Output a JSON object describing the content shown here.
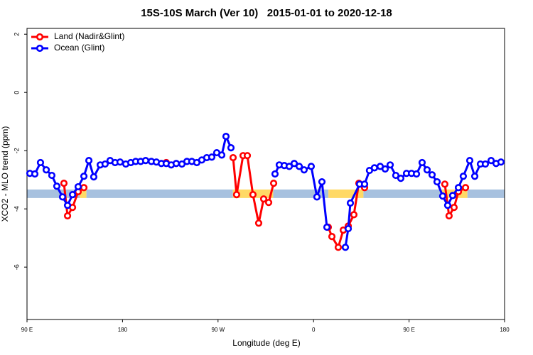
{
  "chart_data": {
    "type": "line",
    "title": "15S-10S March (Ver 10)   2015-01-01 to 2020-12-18",
    "x_label": "Longitude (deg E)",
    "y_label": "XCO2 - MLO trend (ppm)",
    "xlim": [
      90,
      540
    ],
    "xticks": [
      {
        "value": 90,
        "label": "90 E"
      },
      {
        "value": 180,
        "label": "180"
      },
      {
        "value": 270,
        "label": "90 W"
      },
      {
        "value": 360,
        "label": "0"
      },
      {
        "value": 450,
        "label": "90 E"
      },
      {
        "value": 540,
        "label": "180"
      }
    ],
    "ylim": [
      -7.8,
      2.2
    ],
    "yticks": [
      2,
      0,
      -2,
      -4,
      -6
    ],
    "legend": "top-left",
    "band_y": -3.48,
    "bands": [
      {
        "x": [
          90,
          139.6
        ],
        "color": "#a7c1df"
      },
      {
        "x": [
          139.6,
          146
        ],
        "color": "#ffd966"
      },
      {
        "x": [
          146,
          284
        ],
        "color": "#a7c1df"
      },
      {
        "x": [
          284,
          322
        ],
        "color": "#ffd966"
      },
      {
        "x": [
          322,
          374
        ],
        "color": "#a7c1df"
      },
      {
        "x": [
          374,
          407
        ],
        "color": "#ffd966"
      },
      {
        "x": [
          407,
          480
        ],
        "color": "#a7c1df"
      },
      {
        "x": [
          480,
          505
        ],
        "color": "#ffd966"
      },
      {
        "x": [
          505,
          540
        ],
        "color": "#a7c1df"
      }
    ],
    "series": [
      {
        "name": "Land (Nadir&Glint)",
        "color": "#ff0000",
        "x": [
          124.8,
          128.2,
          132.9,
          138.2,
          143.6,
          null,
          221.2,
          null,
          284.2,
          287.5,
          293.6,
          297.6,
          302.9,
          308.3,
          313.0,
          317.7,
          322.4,
          null,
          373.9,
          377.3,
          383.3,
          388.0,
          392.7,
          398.0,
          402.7,
          408.1,
          null,
          483.7,
          487.7,
          492.4,
          496.5,
          503.2
        ],
        "values": [
          -3.12,
          -4.24,
          -3.95,
          -3.41,
          -3.27,
          null,
          -2.41,
          null,
          -2.24,
          -3.51,
          -2.17,
          -2.17,
          -3.51,
          -4.49,
          -3.66,
          -3.78,
          -3.12,
          null,
          -4.63,
          -4.95,
          -5.32,
          -4.73,
          -4.59,
          -4.2,
          -3.12,
          -3.27,
          null,
          -3.15,
          -4.24,
          -3.95,
          -3.41,
          -3.27
        ]
      },
      {
        "name": "Ocean (Glint)",
        "color": "#0000ff",
        "x": [
          92.7,
          97.4,
          102.7,
          108.1,
          113.4,
          118.1,
          123.5,
          128.2,
          132.9,
          138.2,
          143.6,
          148.3,
          152.9,
          159.0,
          163.6,
          168.3,
          173.0,
          177.7,
          183.1,
          187.8,
          192.4,
          197.1,
          201.8,
          207.2,
          211.9,
          216.6,
          221.2,
          225.9,
          230.6,
          236.0,
          240.7,
          245.3,
          250.0,
          254.7,
          259.4,
          264.1,
          268.8,
          273.5,
          277.5,
          282.2,
          null,
          323.7,
          327.7,
          332.4,
          337.1,
          341.8,
          346.5,
          351.1,
          357.8,
          363.2,
          367.9,
          372.6,
          null,
          390.0,
          392.7,
          394.7,
          403.4,
          408.1,
          412.7,
          417.4,
          422.8,
          427.5,
          432.2,
          437.5,
          442.2,
          447.6,
          452.3,
          457.0,
          462.3,
          467.0,
          471.7,
          476.4,
          481.7,
          486.4,
          491.1,
          496.5,
          501.1,
          507.2,
          511.9,
          517.2,
          521.9,
          527.3,
          532.0,
          536.6
        ],
        "values": [
          -2.78,
          -2.8,
          -2.41,
          -2.66,
          -2.85,
          -3.22,
          -3.59,
          -3.88,
          -3.51,
          -3.24,
          -2.88,
          -2.34,
          -2.9,
          -2.49,
          -2.46,
          -2.34,
          -2.41,
          -2.39,
          -2.46,
          -2.41,
          -2.37,
          -2.37,
          -2.34,
          -2.37,
          -2.39,
          -2.44,
          -2.44,
          -2.49,
          -2.44,
          -2.46,
          -2.37,
          -2.37,
          -2.41,
          -2.32,
          -2.24,
          -2.22,
          -2.07,
          -2.15,
          -1.51,
          -1.9,
          null,
          -2.8,
          -2.49,
          -2.51,
          -2.54,
          -2.44,
          -2.54,
          -2.66,
          -2.54,
          -3.59,
          -3.07,
          -4.63,
          null,
          -5.32,
          -4.68,
          -3.8,
          -3.15,
          -3.15,
          -2.68,
          -2.59,
          -2.54,
          -2.63,
          -2.49,
          -2.85,
          -2.95,
          -2.78,
          -2.78,
          -2.8,
          -2.41,
          -2.66,
          -2.83,
          -3.07,
          -3.56,
          -3.88,
          -3.54,
          -3.27,
          -2.88,
          -2.34,
          -2.88,
          -2.46,
          -2.46,
          -2.34,
          -2.44,
          -2.39
        ]
      }
    ]
  }
}
